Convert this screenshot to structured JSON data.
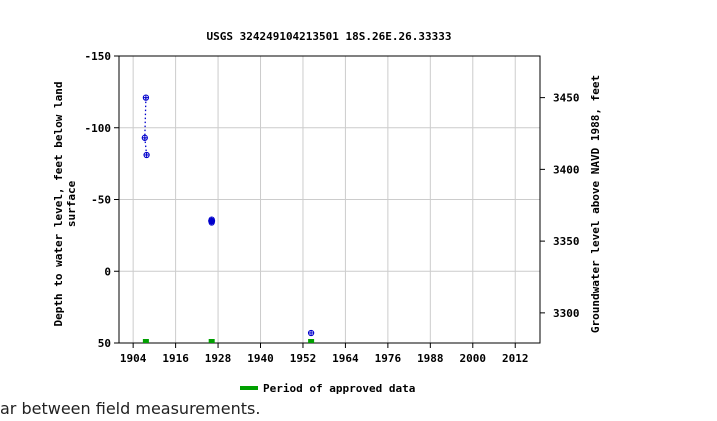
{
  "chart_data": {
    "type": "scatter",
    "title": "USGS 324249104213501 18S.26E.26.33333",
    "ylabel_left": "Depth to water level, feet below land surface",
    "ylabel_right": "Groundwater level above NAVD 1988, feet",
    "x_ticks": [
      "1904",
      "1916",
      "1928",
      "1940",
      "1952",
      "1964",
      "1976",
      "1988",
      "2000",
      "2012"
    ],
    "y_left_ticks": [
      "-150",
      "-100",
      "-50",
      "0",
      "50"
    ],
    "y_right_ticks": [
      "3450",
      "3400",
      "3350",
      "3300"
    ],
    "xlim": [
      1900,
      2019
    ],
    "ylim_left": [
      -150,
      50
    ],
    "ylim_right": [
      3279,
      3479
    ],
    "grid": true,
    "series": [
      {
        "style": "blue-circle-dotted",
        "color": "#0000cc",
        "points": [
          {
            "x": 1907.6,
            "y": -121
          },
          {
            "x": 1907.3,
            "y": -93
          },
          {
            "x": 1907.8,
            "y": -81
          }
        ],
        "connected": true
      },
      {
        "style": "blue-circle",
        "color": "#0000cc",
        "points": [
          {
            "x": 1926.1,
            "y": -35
          },
          {
            "x": 1926.3,
            "y": -35
          },
          {
            "x": 1926.2,
            "y": -36
          },
          {
            "x": 1926.2,
            "y": -34
          }
        ],
        "connected": false
      },
      {
        "style": "blue-circle",
        "color": "#0000cc",
        "points": [
          {
            "x": 1954.3,
            "y": 43
          }
        ],
        "connected": false
      }
    ],
    "approved_periods": [
      1907.6,
      1926.2,
      1954.3
    ],
    "approved_color": "#00a000",
    "legend": {
      "label": "Period of approved data",
      "placement": "bottom-center"
    }
  },
  "footer_note": "ar between field measurements."
}
